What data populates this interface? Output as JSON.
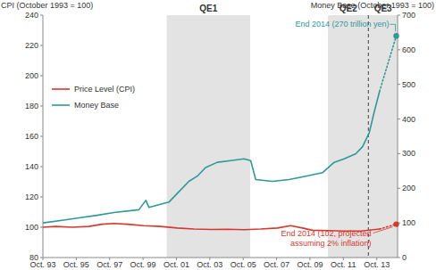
{
  "chart_data": {
    "type": "line",
    "y_label": "CPI (October 1993 = 100)",
    "y2_label": "Money Base (October 1993 = 100)",
    "xlim": [
      1993.75,
      2015.0
    ],
    "xticks": [
      {
        "value": 1993.75,
        "label": "Oct. 93"
      },
      {
        "value": 1995.75,
        "label": "Oct. 95"
      },
      {
        "value": 1997.75,
        "label": "Oct. 97"
      },
      {
        "value": 1999.75,
        "label": "Oct. 99"
      },
      {
        "value": 2001.75,
        "label": "Oct. 01"
      },
      {
        "value": 2003.75,
        "label": "Oct. 03"
      },
      {
        "value": 2005.75,
        "label": "Oct. 05"
      },
      {
        "value": 2007.75,
        "label": "Oct. 07"
      },
      {
        "value": 2009.75,
        "label": "Oct. 09"
      },
      {
        "value": 2011.75,
        "label": "Oct. 11"
      },
      {
        "value": 2013.75,
        "label": "Oct. 13"
      }
    ],
    "ylim": [
      80,
      240
    ],
    "yticks": [
      80,
      100,
      120,
      140,
      160,
      180,
      200,
      220,
      240
    ],
    "y2lim": [
      0,
      700
    ],
    "y2ticks": [
      0,
      100,
      200,
      300,
      400,
      500,
      600,
      700
    ],
    "grid": false,
    "legend": "left",
    "regions": [
      {
        "label": "QE1",
        "x": [
          2001.17,
          2006.17
        ]
      },
      {
        "label": "QE2",
        "x": [
          2010.83,
          2013.25
        ]
      },
      {
        "label": "QE3",
        "x": [
          2013.25,
          2015.0
        ]
      }
    ],
    "annotations": [
      "End 2014 (270 trillion yen)",
      [
        "End 2014 (102, projected",
        "assuming 2% inflation)"
      ]
    ],
    "series": [
      {
        "name": "Price Level (CPI)",
        "color": "#d63a2f",
        "axis": "y",
        "line_style": "solid",
        "x": [
          1993.75,
          1994.5,
          1995.5,
          1996.5,
          1997.3,
          1998.0,
          1998.8,
          1999.8,
          2000.8,
          2001.8,
          2002.8,
          2003.8,
          2004.8,
          2005.8,
          2006.8,
          2007.8,
          2008.6,
          2009.3,
          2009.9,
          2010.8,
          2011.8,
          2012.8,
          2013.92
        ],
        "values": [
          100,
          100.5,
          100,
          100.5,
          102,
          102.5,
          102,
          101,
          100.5,
          99.5,
          98.8,
          98.5,
          98.7,
          98.4,
          98.8,
          99.5,
          101,
          99.5,
          98,
          97.8,
          97.5,
          97.5,
          98.8
        ]
      },
      {
        "name": "Money Base",
        "color": "#2e9a96",
        "axis": "y2",
        "line_style": "solid",
        "x": [
          1993.75,
          1995.0,
          1996.0,
          1997.0,
          1998.0,
          1999.5,
          1999.92,
          2000.1,
          2000.9,
          2001.3,
          2001.9,
          2002.5,
          2003.0,
          2003.5,
          2004.2,
          2005.0,
          2005.8,
          2006.2,
          2006.5,
          2007.5,
          2008.5,
          2009.5,
          2010.5,
          2011.2,
          2011.8,
          2012.5,
          2012.9,
          2013.3,
          2013.6,
          2013.92
        ],
        "values": [
          100,
          108,
          115,
          122,
          130,
          138,
          165,
          145,
          155,
          160,
          190,
          220,
          235,
          260,
          275,
          280,
          285,
          280,
          225,
          220,
          225,
          235,
          245,
          275,
          285,
          300,
          320,
          360,
          420,
          480
        ]
      },
      {
        "color": "#2e9a96",
        "axis": "y2",
        "line_style": "dotted",
        "marker": "end",
        "x": [
          2013.92,
          2014.92
        ],
        "values": [
          480,
          640
        ]
      },
      {
        "color": "#d63a2f",
        "axis": "y",
        "line_style": "dotted",
        "marker": "end",
        "x": [
          2013.92,
          2014.92
        ],
        "values": [
          98.8,
          102
        ]
      }
    ]
  }
}
